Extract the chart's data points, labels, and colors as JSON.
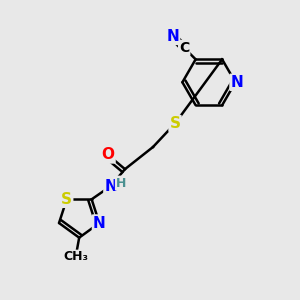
{
  "background_color": "#e8e8e8",
  "atom_colors": {
    "C": "#000000",
    "N": "#0000ff",
    "O": "#ff0000",
    "S": "#cccc00",
    "H": "#4a9090"
  },
  "bond_color": "#000000",
  "bond_width": 1.8,
  "figsize": [
    3.0,
    3.0
  ],
  "dpi": 100
}
